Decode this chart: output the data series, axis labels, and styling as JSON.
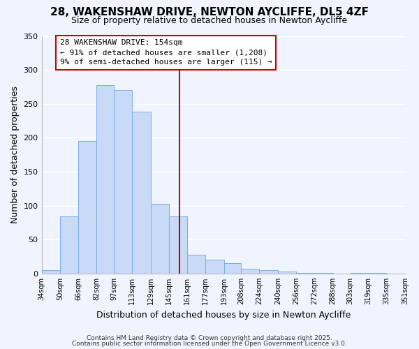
{
  "title": "28, WAKENSHAW DRIVE, NEWTON AYCLIFFE, DL5 4ZF",
  "subtitle": "Size of property relative to detached houses in Newton Aycliffe",
  "xlabel": "Distribution of detached houses by size in Newton Aycliffe",
  "ylabel": "Number of detached properties",
  "bar_color": "#c8daf5",
  "bar_edgecolor": "#7aaee8",
  "bar_left_edges": [
    34,
    50,
    66,
    82,
    97,
    113,
    129,
    145,
    161,
    177,
    193,
    208,
    224,
    240,
    256,
    272,
    288,
    303,
    319,
    335
  ],
  "bar_widths": [
    16,
    16,
    16,
    15,
    16,
    16,
    16,
    16,
    16,
    16,
    15,
    16,
    16,
    16,
    16,
    16,
    15,
    16,
    16,
    16
  ],
  "bar_heights": [
    5,
    84,
    195,
    277,
    270,
    238,
    103,
    84,
    28,
    20,
    15,
    7,
    5,
    3,
    1,
    1,
    0,
    1,
    1,
    0
  ],
  "tick_labels": [
    "34sqm",
    "50sqm",
    "66sqm",
    "82sqm",
    "97sqm",
    "113sqm",
    "129sqm",
    "145sqm",
    "161sqm",
    "177sqm",
    "193sqm",
    "208sqm",
    "224sqm",
    "240sqm",
    "256sqm",
    "272sqm",
    "288sqm",
    "303sqm",
    "319sqm",
    "335sqm",
    "351sqm"
  ],
  "vline_x": 154,
  "vline_color": "#cc0000",
  "ylim": [
    0,
    350
  ],
  "annotation_title": "28 WAKENSHAW DRIVE: 154sqm",
  "annotation_line1": "← 91% of detached houses are smaller (1,208)",
  "annotation_line2": "9% of semi-detached houses are larger (115) →",
  "footer1": "Contains HM Land Registry data © Crown copyright and database right 2025.",
  "footer2": "Contains public sector information licensed under the Open Government Licence v3.0.",
  "background_color": "#f0f4ff",
  "grid_color": "#ffffff",
  "title_fontsize": 11,
  "subtitle_fontsize": 9,
  "axis_label_fontsize": 9,
  "tick_fontsize": 7,
  "annotation_fontsize": 8,
  "footer_fontsize": 6.5
}
